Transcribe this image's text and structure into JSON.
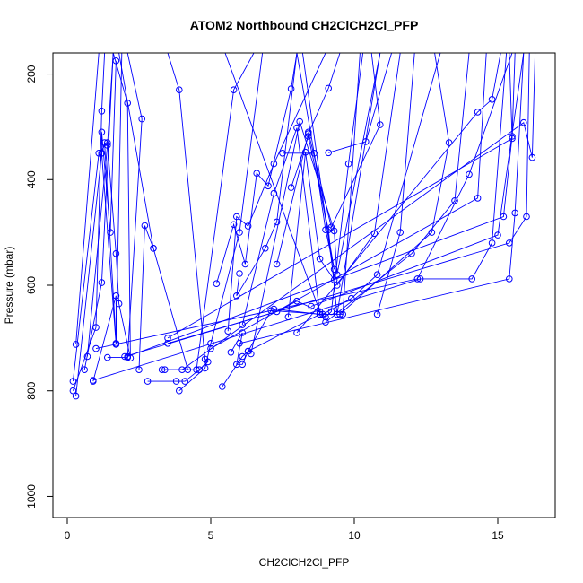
{
  "chart_data": {
    "type": "line",
    "title": "ATOM2 Northbound CH2ClCH2Cl_PFP",
    "xlabel": "CH2ClCH2Cl_PFP",
    "ylabel": "Pressure (mbar)",
    "xlim": [
      -0.5,
      17
    ],
    "ylim": [
      1040,
      160
    ],
    "y_inverted": true,
    "x_ticks": [
      0,
      5,
      10,
      15
    ],
    "y_ticks": [
      200,
      400,
      600,
      800,
      1000
    ],
    "grid": false,
    "legend": "none",
    "colors": {
      "series": "#0000ff",
      "axis": "#000000",
      "background": "#ffffff"
    },
    "marker": "open-circle",
    "series": [
      {
        "values": [
          [
            0.3,
            810
          ],
          [
            1.2,
            350
          ],
          [
            1.3,
            330
          ],
          [
            1.7,
            710
          ],
          [
            1.9,
            160
          ]
        ]
      },
      {
        "values": [
          [
            0.2,
            800
          ],
          [
            1.0,
            680
          ],
          [
            1.2,
            270
          ],
          [
            1.3,
            160
          ]
        ]
      },
      {
        "values": [
          [
            0.3,
            712
          ],
          [
            1.1,
            160
          ]
        ]
      },
      {
        "values": [
          [
            0.6,
            760
          ],
          [
            1.2,
            595
          ],
          [
            1.6,
            160
          ]
        ]
      },
      {
        "values": [
          [
            0.2,
            782
          ],
          [
            1.1,
            350
          ],
          [
            1.4,
            330
          ],
          [
            1.7,
            540
          ],
          [
            1.8,
            635
          ],
          [
            2.2,
            738
          ],
          [
            2.1,
            255
          ],
          [
            1.6,
            160
          ]
        ]
      },
      {
        "values": [
          [
            0.9,
            782
          ],
          [
            1.7,
            620
          ],
          [
            1.7,
            712
          ],
          [
            1.2,
            350
          ],
          [
            1.2,
            310
          ],
          [
            1.5,
            500
          ],
          [
            1.7,
            175
          ]
        ]
      },
      {
        "values": [
          [
            0.7,
            735
          ],
          [
            1.4,
            335
          ],
          [
            1.6,
            160
          ]
        ]
      },
      {
        "values": [
          [
            1.4,
            737
          ],
          [
            2.1,
            737
          ],
          [
            2.6,
            285
          ],
          [
            2.1,
            160
          ]
        ]
      },
      {
        "values": [
          [
            2.5,
            760
          ],
          [
            2.7,
            487
          ],
          [
            3.0,
            530
          ],
          [
            1.8,
            160
          ]
        ]
      },
      {
        "values": [
          [
            2.8,
            782
          ],
          [
            3.8,
            782
          ],
          [
            4.1,
            782
          ],
          [
            4.6,
            760
          ],
          [
            4.9,
            745
          ],
          [
            4.8,
            740
          ],
          [
            3.9,
            230
          ],
          [
            3.5,
            160
          ]
        ]
      },
      {
        "values": [
          [
            3.4,
            760
          ],
          [
            4.2,
            760
          ],
          [
            3.0,
            530
          ]
        ]
      },
      {
        "values": [
          [
            3.9,
            800
          ],
          [
            4.8,
            757
          ],
          [
            5.0,
            710
          ],
          [
            6.0,
            500
          ],
          [
            6.8,
            160
          ]
        ]
      },
      {
        "values": [
          [
            3.5,
            710
          ],
          [
            7.3,
            650
          ],
          [
            8.0,
            630
          ],
          [
            8.8,
            650
          ],
          [
            5.5,
            160
          ]
        ]
      },
      {
        "values": [
          [
            3.3,
            760
          ],
          [
            4.5,
            760
          ],
          [
            5.8,
            230
          ],
          [
            6.5,
            160
          ]
        ]
      },
      {
        "values": [
          [
            5.4,
            792
          ],
          [
            6.1,
            735
          ],
          [
            6.3,
            725
          ],
          [
            7.1,
            648
          ],
          [
            8.9,
            655
          ],
          [
            9.9,
            625
          ],
          [
            10.8,
            580
          ],
          [
            13.0,
            160
          ]
        ]
      },
      {
        "values": [
          [
            5.7,
            727
          ],
          [
            6.1,
            690
          ],
          [
            5.9,
            750
          ],
          [
            6.1,
            750
          ],
          [
            6.3,
            725
          ],
          [
            8.8,
            655
          ]
        ]
      },
      {
        "values": [
          [
            5.2,
            597
          ],
          [
            5.8,
            485
          ],
          [
            6.2,
            560
          ],
          [
            6.6,
            388
          ],
          [
            7.0,
            412
          ],
          [
            7.8,
            228
          ],
          [
            8.0,
            160
          ]
        ]
      },
      {
        "values": [
          [
            5.6,
            687
          ],
          [
            5.9,
            470
          ],
          [
            6.3,
            488
          ],
          [
            7.2,
            370
          ],
          [
            9.0,
            160
          ]
        ]
      },
      {
        "values": [
          [
            6.0,
            578
          ],
          [
            5.9,
            620
          ],
          [
            6.9,
            530
          ],
          [
            7.3,
            480
          ],
          [
            8.0,
            160
          ]
        ]
      },
      {
        "values": [
          [
            6.1,
            675
          ],
          [
            7.2,
            426
          ],
          [
            8.0,
            302
          ],
          [
            8.8,
            655
          ],
          [
            9.0,
            660
          ],
          [
            9.2,
            650
          ],
          [
            9.8,
            370
          ],
          [
            10.3,
            160
          ]
        ]
      },
      {
        "values": [
          [
            6.4,
            730
          ],
          [
            8.1,
            290
          ],
          [
            9.3,
            497
          ],
          [
            9.4,
            580
          ],
          [
            10.9,
            160
          ]
        ]
      },
      {
        "values": [
          [
            7.3,
            560
          ],
          [
            8.4,
            313
          ],
          [
            9.1,
            227
          ],
          [
            9.5,
            160
          ]
        ]
      },
      {
        "values": [
          [
            7.2,
            645
          ],
          [
            8.8,
            655
          ],
          [
            9.6,
            655
          ],
          [
            10.2,
            160
          ]
        ]
      },
      {
        "values": [
          [
            7.7,
            660
          ],
          [
            8.3,
            348
          ],
          [
            8.8,
            550
          ],
          [
            9.3,
            590
          ],
          [
            8.2,
            160
          ]
        ]
      },
      {
        "values": [
          [
            7.8,
            415
          ],
          [
            8.4,
            318
          ],
          [
            9.1,
            495
          ],
          [
            9.4,
            655
          ],
          [
            10.9,
            160
          ]
        ]
      },
      {
        "values": [
          [
            7.5,
            350
          ],
          [
            8.6,
            350
          ],
          [
            9.0,
            495
          ],
          [
            9.3,
            570
          ],
          [
            8.0,
            160
          ]
        ]
      },
      {
        "values": [
          [
            8.4,
            310
          ],
          [
            9.2,
            490
          ],
          [
            10.9,
            296
          ],
          [
            10.6,
            160
          ]
        ]
      },
      {
        "values": [
          [
            9.1,
            349
          ],
          [
            10.4,
            328
          ],
          [
            11.3,
            160
          ]
        ]
      },
      {
        "values": [
          [
            9.5,
            655
          ],
          [
            12.7,
            500
          ],
          [
            13.3,
            330
          ],
          [
            12.8,
            160
          ]
        ]
      },
      {
        "values": [
          [
            9.4,
            600
          ],
          [
            10.7,
            502
          ],
          [
            11.6,
            160
          ]
        ]
      },
      {
        "values": [
          [
            10.8,
            655
          ],
          [
            11.6,
            500
          ],
          [
            12.1,
            160
          ]
        ]
      },
      {
        "values": [
          [
            0.9,
            780
          ],
          [
            12.3,
            588
          ],
          [
            14.1,
            588
          ],
          [
            14.8,
            520
          ],
          [
            15.3,
            160
          ]
        ]
      },
      {
        "values": [
          [
            1.0,
            720
          ],
          [
            12.2,
            588
          ],
          [
            14.0,
            390
          ],
          [
            15.5,
            160
          ]
        ]
      },
      {
        "values": [
          [
            2.0,
            735
          ],
          [
            15.4,
            520
          ],
          [
            16.0,
            470
          ],
          [
            16.1,
            160
          ]
        ]
      },
      {
        "values": [
          [
            2.1,
            735
          ],
          [
            15.2,
            470
          ],
          [
            15.5,
            318
          ],
          [
            15.6,
            160
          ]
        ]
      },
      {
        "values": [
          [
            3.5,
            700
          ],
          [
            15.5,
            322
          ],
          [
            15.4,
            160
          ]
        ]
      },
      {
        "values": [
          [
            4.0,
            760
          ],
          [
            15.9,
            292
          ],
          [
            16.2,
            358
          ],
          [
            16.3,
            160
          ]
        ]
      },
      {
        "values": [
          [
            5.0,
            720
          ],
          [
            14.3,
            435
          ],
          [
            14.6,
            160
          ]
        ]
      },
      {
        "values": [
          [
            6.0,
            710
          ],
          [
            15.4,
            588
          ],
          [
            15.6,
            463
          ],
          [
            15.9,
            160
          ]
        ]
      },
      {
        "values": [
          [
            8.0,
            690
          ],
          [
            14.3,
            272
          ],
          [
            14.8,
            248
          ],
          [
            15.1,
            160
          ]
        ]
      },
      {
        "values": [
          [
            9.0,
            670
          ],
          [
            12.0,
            540
          ],
          [
            13.5,
            440
          ],
          [
            14.0,
            160
          ]
        ]
      },
      {
        "values": [
          [
            8.5,
            640
          ],
          [
            15.0,
            505
          ],
          [
            15.9,
            160
          ]
        ]
      }
    ]
  }
}
